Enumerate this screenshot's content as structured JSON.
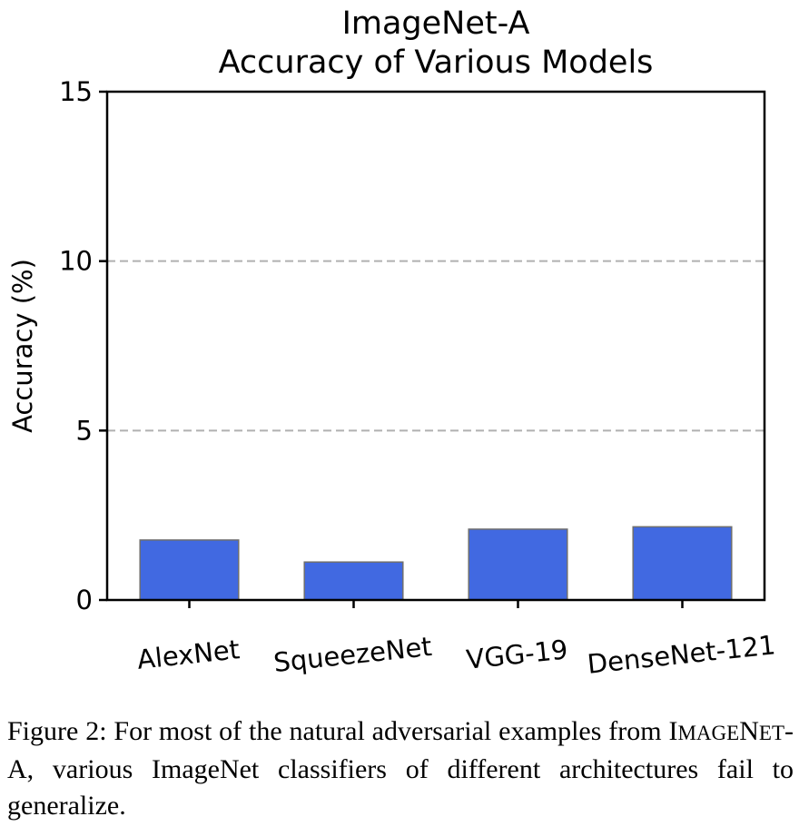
{
  "chart_data": {
    "type": "bar",
    "title_lines": [
      "ImageNet-A",
      "Accuracy of Various Models"
    ],
    "xlabel": "",
    "ylabel": "Accuracy (%)",
    "categories": [
      "AlexNet",
      "SqueezeNet",
      "VGG-19",
      "DenseNet-121"
    ],
    "values": [
      1.77,
      1.12,
      2.09,
      2.16
    ],
    "ylim": [
      0,
      15
    ],
    "yticks": [
      "0",
      "5",
      "10",
      "15"
    ],
    "grid": "y-dashed",
    "bar_color": "#4169E1"
  },
  "caption": {
    "prefix": "Figure 2: For most of the natural adversarial examples from",
    "sc": [
      {
        "big": "I",
        "small": "MAGE"
      },
      {
        "big": "N",
        "small": "ET"
      },
      {
        "big": "-A",
        "small": ""
      }
    ],
    "suffix": ", various ImageNet classifiers of different architectures fail to generalize."
  }
}
